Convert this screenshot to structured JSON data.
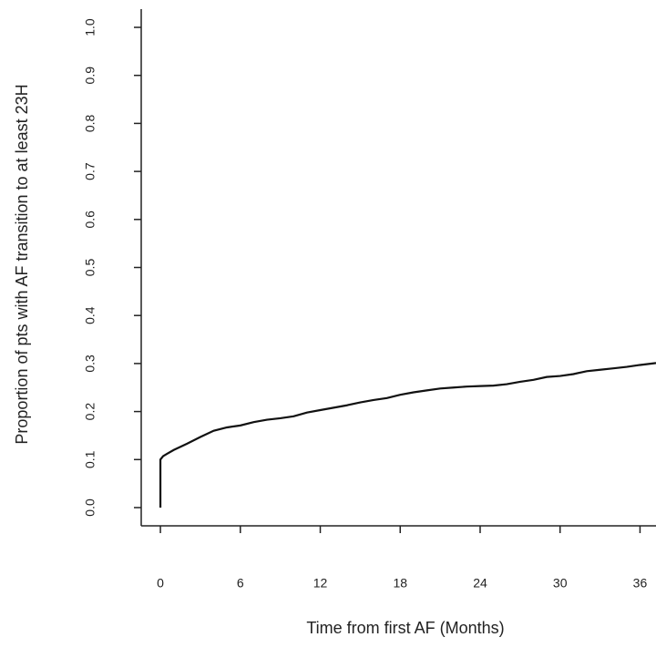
{
  "chart_data": {
    "type": "line",
    "x_label": "Time from first AF (Months)",
    "y_label": "Proportion of pts with AF transition to at least 23H",
    "x": [
      0,
      0,
      0.2,
      0.5,
      1,
      2,
      3,
      4,
      5,
      6,
      7,
      8,
      9,
      10,
      11,
      12,
      13,
      14,
      15,
      16,
      17,
      18,
      19,
      20,
      21,
      22,
      23,
      24,
      25,
      26,
      27,
      28,
      29,
      30,
      31,
      32,
      33,
      34,
      35,
      36,
      37.2
    ],
    "series": [
      {
        "color": "#111111",
        "values": [
          0,
          0.1,
          0.107,
          0.112,
          0.12,
          0.133,
          0.147,
          0.16,
          0.167,
          0.171,
          0.178,
          0.183,
          0.186,
          0.19,
          0.198,
          0.203,
          0.208,
          0.213,
          0.219,
          0.224,
          0.228,
          0.235,
          0.24,
          0.244,
          0.248,
          0.25,
          0.252,
          0.253,
          0.254,
          0.257,
          0.262,
          0.266,
          0.272,
          0.274,
          0.278,
          0.284,
          0.287,
          0.29,
          0.293,
          0.297,
          0.301
        ]
      }
    ],
    "xlim": [
      -1.44,
      37.2
    ],
    "ylim": [
      -0.038,
      1.038
    ],
    "xticks": [
      0,
      6,
      12,
      18,
      24,
      30,
      36
    ],
    "yticks": [
      {
        "value": 0,
        "label": "0.0"
      },
      {
        "value": 0.1,
        "label": "0.1"
      },
      {
        "value": 0.2,
        "label": "0.2"
      },
      {
        "value": 0.3,
        "label": "0.3"
      },
      {
        "value": 0.4,
        "label": "0.4"
      },
      {
        "value": 0.5,
        "label": "0.5"
      },
      {
        "value": 0.6,
        "label": "0.6"
      },
      {
        "value": 0.7,
        "label": "0.7"
      },
      {
        "value": 0.8,
        "label": "0.8"
      },
      {
        "value": 0.9,
        "label": "0.9"
      },
      {
        "value": 1.0,
        "label": "1.0"
      }
    ],
    "grid": false
  }
}
